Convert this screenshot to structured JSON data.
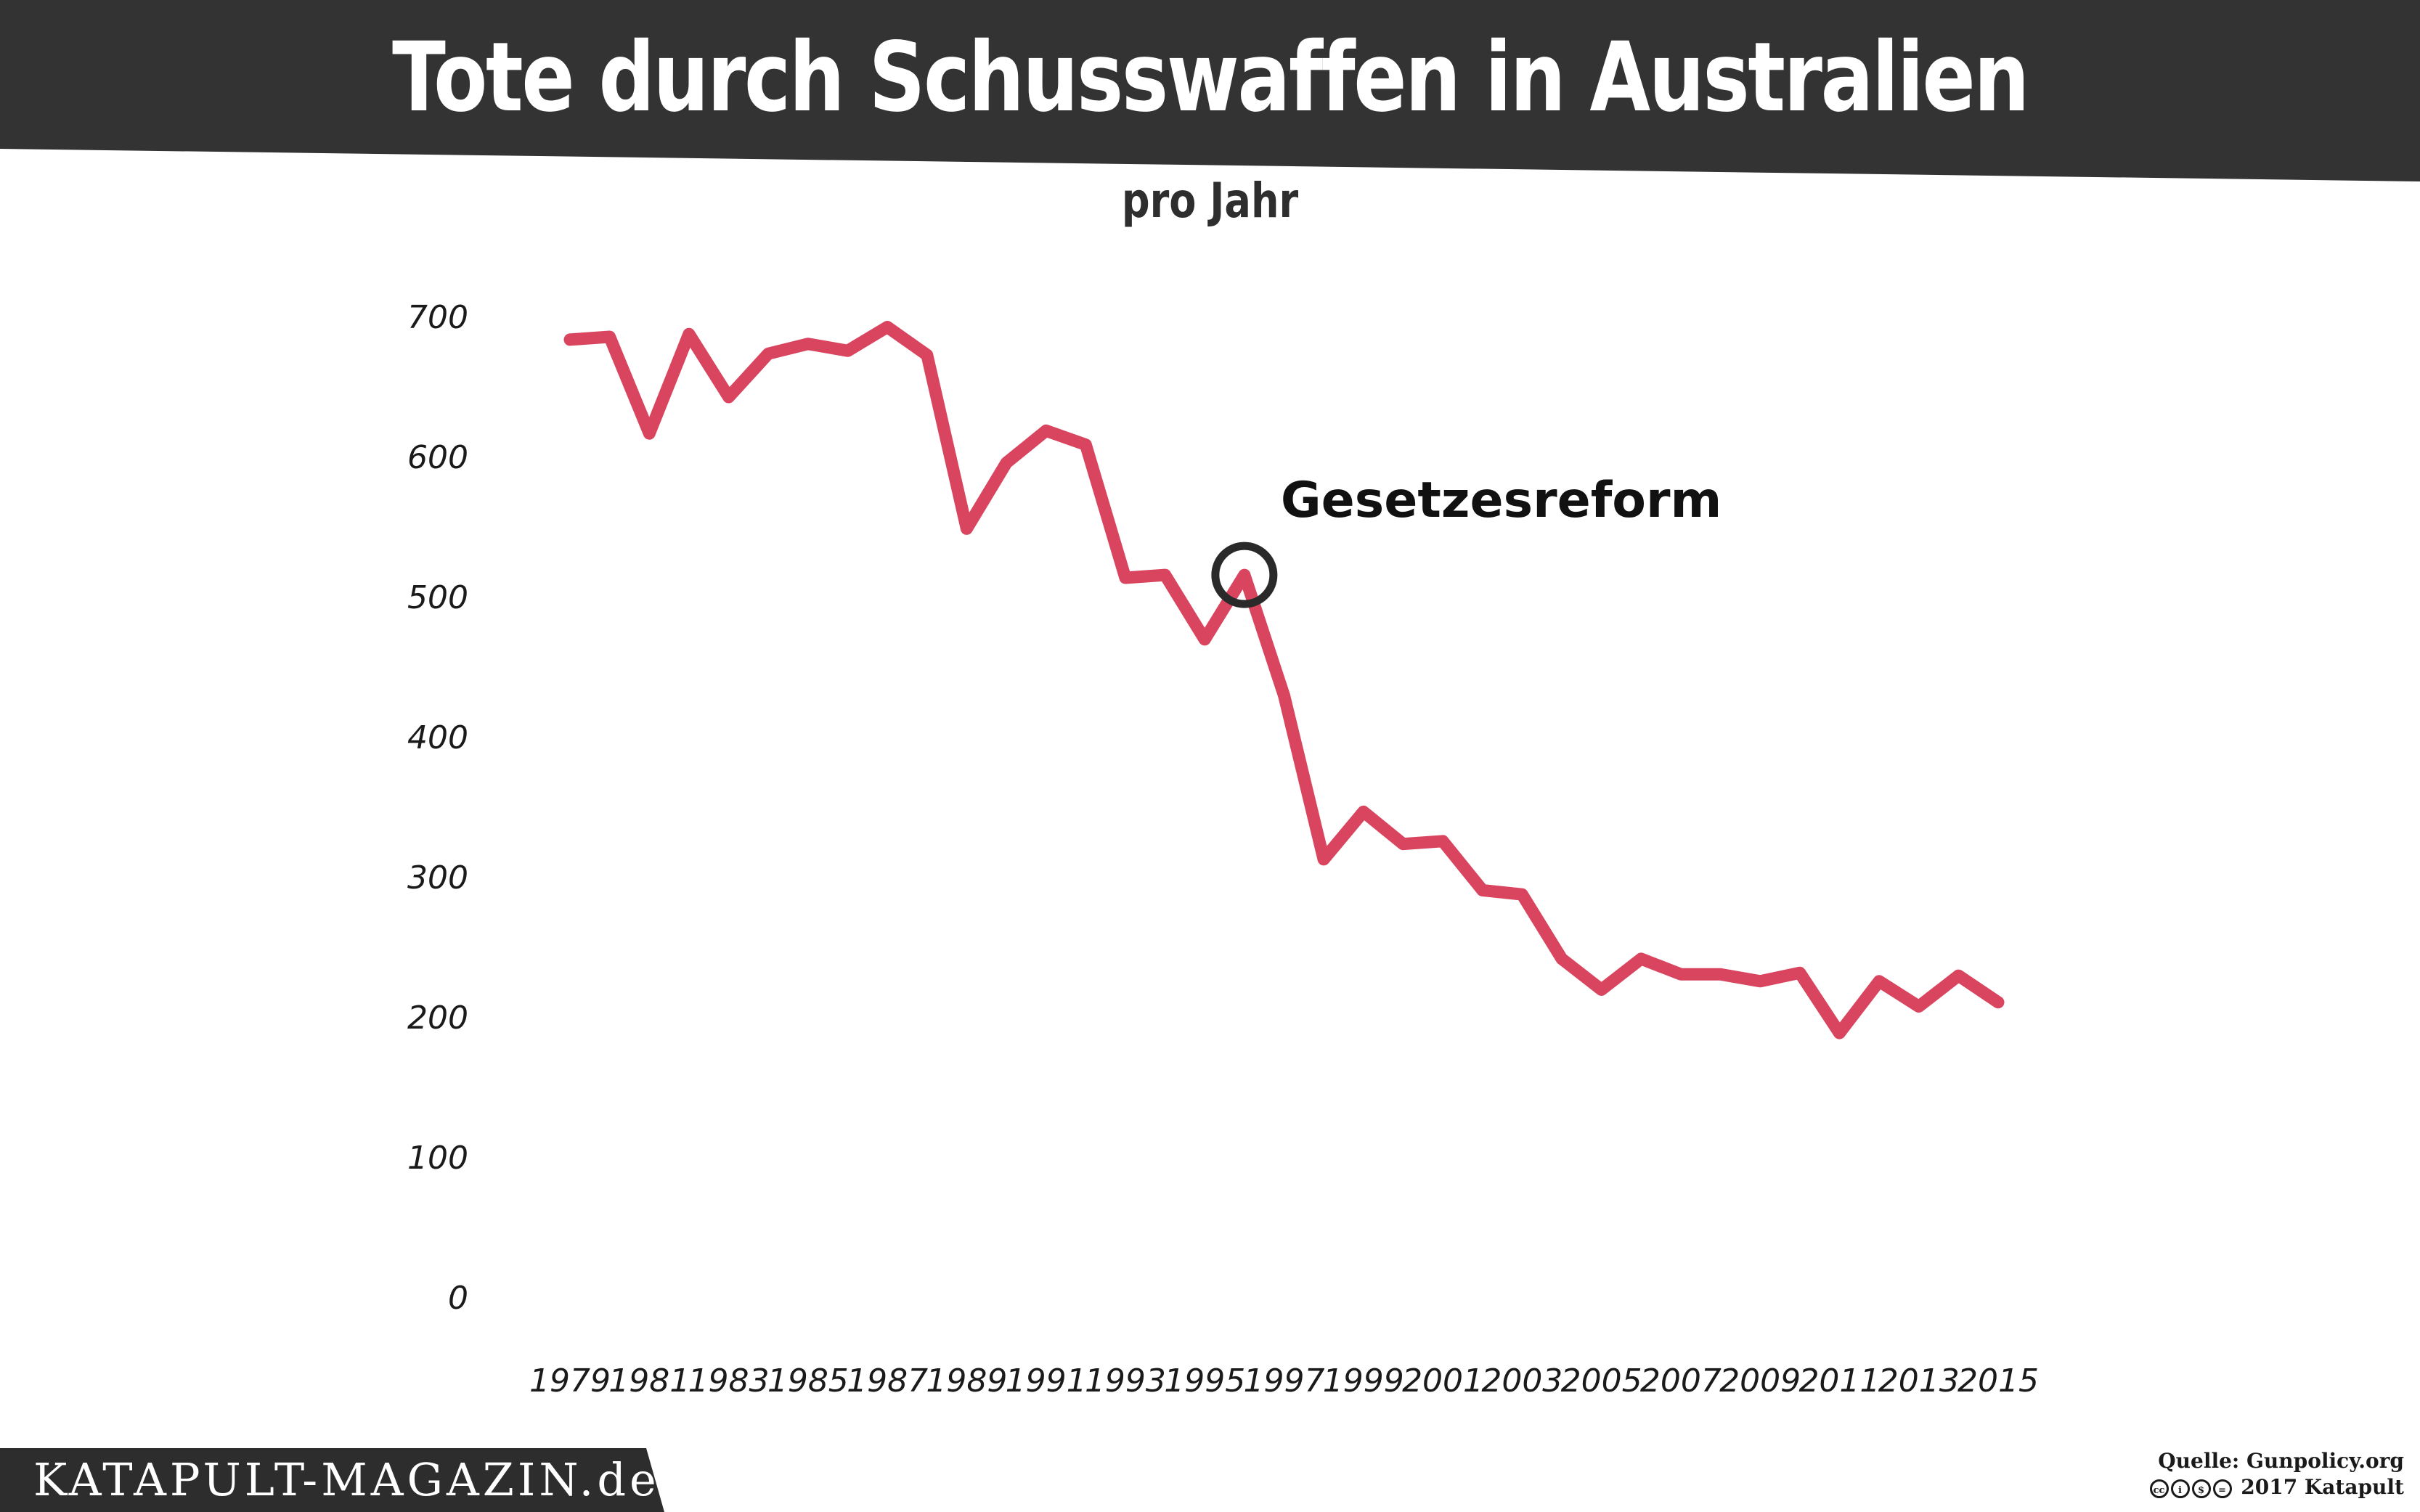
{
  "header": {
    "title": "Tote durch Schusswaffen in Australien",
    "subtitle": "pro Jahr"
  },
  "chart_data": {
    "type": "line",
    "title": "Tote durch Schusswaffen in Australien",
    "subtitle": "pro Jahr",
    "xlabel": "",
    "ylabel": "",
    "x": [
      1979,
      1980,
      1981,
      1982,
      1983,
      1984,
      1985,
      1986,
      1987,
      1988,
      1989,
      1990,
      1991,
      1992,
      1993,
      1994,
      1995,
      1996,
      1997,
      1998,
      1999,
      2000,
      2001,
      2002,
      2003,
      2004,
      2005,
      2006,
      2007,
      2008,
      2009,
      2010,
      2011,
      2012,
      2013,
      2014,
      2015
    ],
    "series": [
      {
        "name": "Tote durch Schusswaffen",
        "values": [
          684,
          686,
          617,
          688,
          643,
          674,
          681,
          676,
          693,
          673,
          549,
          596,
          619,
          609,
          514,
          516,
          470,
          516,
          430,
          313,
          347,
          324,
          326,
          291,
          288,
          242,
          220,
          242,
          231,
          231,
          226,
          232,
          189,
          226,
          208,
          230,
          211
        ],
        "color": "#d9455f"
      }
    ],
    "xticks": [
      "1979",
      "1981",
      "1983",
      "1985",
      "1987",
      "1989",
      "1991",
      "1993",
      "1995",
      "1997",
      "1999",
      "2001",
      "2003",
      "2005",
      "2007",
      "2009",
      "2011",
      "2013",
      "2015"
    ],
    "yticks": [
      "0",
      "100",
      "200",
      "300",
      "400",
      "500",
      "600",
      "700"
    ],
    "ylim": [
      0,
      700
    ],
    "xlim": [
      1979,
      2015
    ],
    "grid": false,
    "annotations": [
      {
        "label": "Gesetzesreform",
        "x": 1996,
        "y": 516
      }
    ]
  },
  "footer": {
    "brand": "KATAPULT-MAGAZIN.de",
    "source": "Quelle: Gunpolicy.org",
    "copyright": "2017 Katapult",
    "license_icons": [
      "cc-icon",
      "by-icon",
      "nc-icon",
      "nd-icon"
    ]
  },
  "colors": {
    "banner": "#333333",
    "line": "#d9455f",
    "marker": "#2a2a2a"
  }
}
